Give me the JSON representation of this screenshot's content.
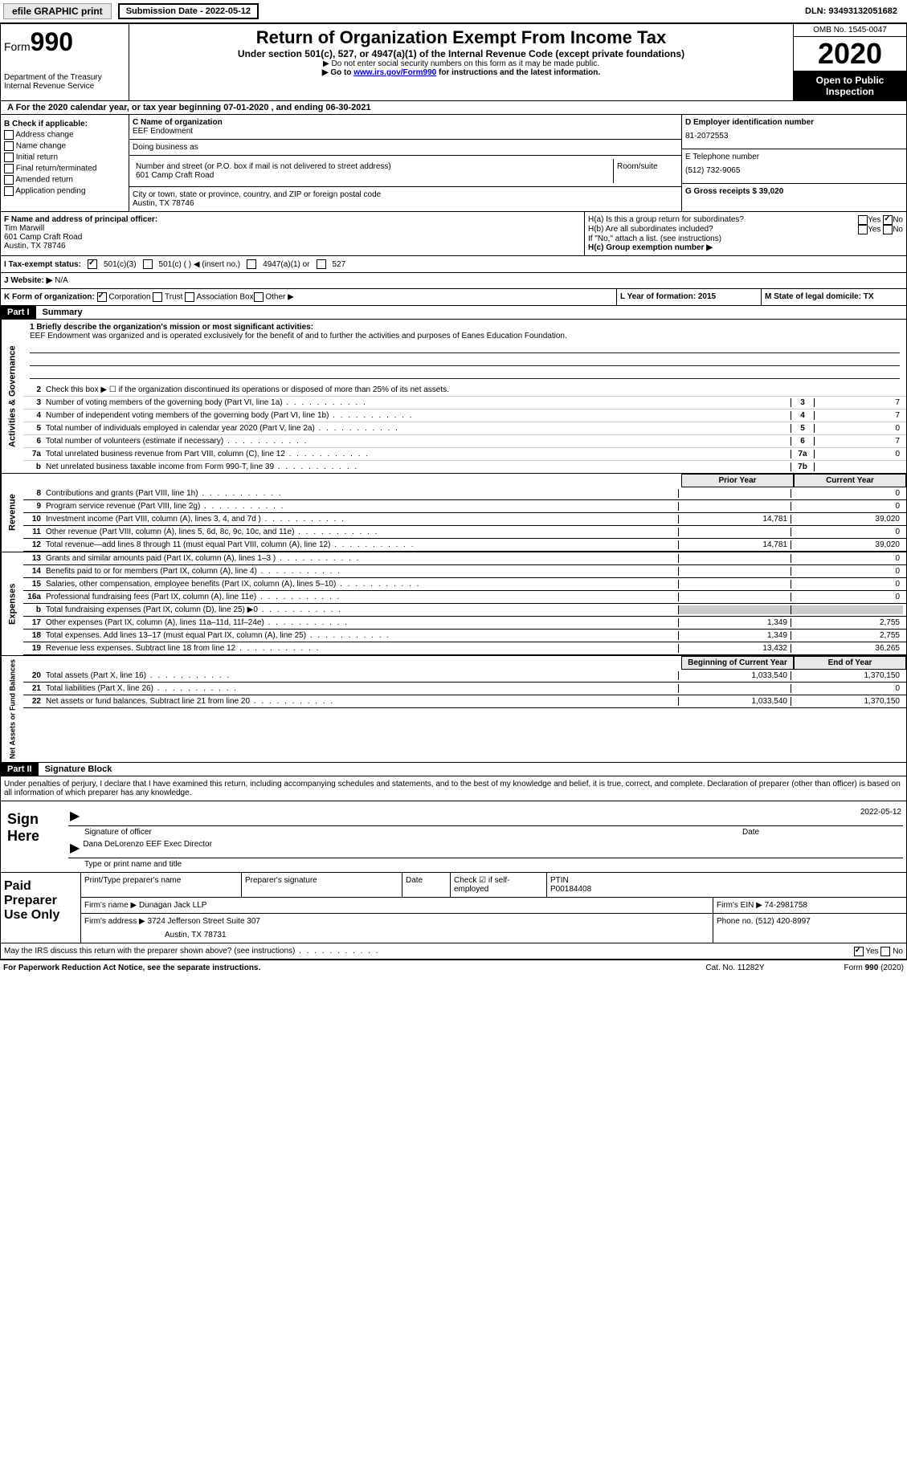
{
  "top": {
    "efile": "efile GRAPHIC print",
    "sub_date_label": "Submission Date - 2022-05-12",
    "dln": "DLN: 93493132051682"
  },
  "header": {
    "form_label": "Form",
    "form_num": "990",
    "dept": "Department of the Treasury\nInternal Revenue Service",
    "title": "Return of Organization Exempt From Income Tax",
    "subtitle": "Under section 501(c), 527, or 4947(a)(1) of the Internal Revenue Code (except private foundations)",
    "note1": "▶ Do not enter social security numbers on this form as it may be made public.",
    "note2_pre": "▶ Go to ",
    "note2_link": "www.irs.gov/Form990",
    "note2_post": " for instructions and the latest information.",
    "omb": "OMB No. 1545-0047",
    "year": "2020",
    "inspect": "Open to Public Inspection"
  },
  "row_a": "A For the 2020 calendar year, or tax year beginning 07-01-2020   , and ending 06-30-2021",
  "col_b": {
    "label": "B Check if applicable:",
    "items": [
      "Address change",
      "Name change",
      "Initial return",
      "Final return/terminated",
      "Amended return",
      "Application pending"
    ]
  },
  "org": {
    "c_label": "C Name of organization",
    "name": "EEF Endowment",
    "dba_label": "Doing business as",
    "dba": "",
    "street_label": "Number and street (or P.O. box if mail is not delivered to street address)",
    "street": "601 Camp Craft Road",
    "room_label": "Room/suite",
    "city_label": "City or town, state or province, country, and ZIP or foreign postal code",
    "city": "Austin, TX  78746"
  },
  "right": {
    "d_label": "D Employer identification number",
    "ein": "81-2072553",
    "e_label": "E Telephone number",
    "phone": "(512) 732-9065",
    "g_label": "G Gross receipts $ 39,020"
  },
  "fh": {
    "f_label": "F  Name and address of principal officer:",
    "f_name": "Tim Marwill",
    "f_addr1": "601 Camp Craft Road",
    "f_addr2": "Austin, TX  78746",
    "ha": "H(a)  Is this a group return for subordinates?",
    "hb": "H(b)  Are all subordinates included?",
    "hb_note": "If \"No,\" attach a list. (see instructions)",
    "hc": "H(c)  Group exemption number ▶",
    "yes": "Yes",
    "no": "No"
  },
  "status": {
    "i_label": "I  Tax-exempt status:",
    "s1": "501(c)(3)",
    "s2": "501(c) (  ) ◀ (insert no.)",
    "s3": "4947(a)(1) or",
    "s4": "527"
  },
  "j": {
    "label": "J  Website: ▶",
    "val": "N/A"
  },
  "klm": {
    "k_label": "K Form of organization:",
    "k_opts": [
      "Corporation",
      "Trust",
      "Association",
      "Other ▶"
    ],
    "l": "L Year of formation: 2015",
    "m": "M State of legal domicile: TX"
  },
  "part1": {
    "header": "Part I",
    "title": "Summary",
    "line1_label": "1 Briefly describe the organization's mission or most significant activities:",
    "mission": "EEF Endowment was organized and is operated exclusively for the benefit of and to further the activities and purposes of Eanes Education Foundation.",
    "line2": "Check this box ▶ ☐  if the organization discontinued its operations or disposed of more than 25% of its net assets.",
    "gov_label": "Activities & Governance",
    "rev_label": "Revenue",
    "exp_label": "Expenses",
    "net_label": "Net Assets or Fund Balances",
    "prior": "Prior Year",
    "current": "Current Year",
    "boy": "Beginning of Current Year",
    "eoy": "End of Year",
    "lines_gov": [
      {
        "n": "3",
        "label": "Number of voting members of the governing body (Part VI, line 1a)",
        "box": "3",
        "val": "7"
      },
      {
        "n": "4",
        "label": "Number of independent voting members of the governing body (Part VI, line 1b)",
        "box": "4",
        "val": "7"
      },
      {
        "n": "5",
        "label": "Total number of individuals employed in calendar year 2020 (Part V, line 2a)",
        "box": "5",
        "val": "0"
      },
      {
        "n": "6",
        "label": "Total number of volunteers (estimate if necessary)",
        "box": "6",
        "val": "7"
      },
      {
        "n": "7a",
        "label": "Total unrelated business revenue from Part VIII, column (C), line 12",
        "box": "7a",
        "val": "0"
      },
      {
        "n": "b",
        "label": "Net unrelated business taxable income from Form 990-T, line 39",
        "box": "7b",
        "val": ""
      }
    ],
    "lines_rev": [
      {
        "n": "8",
        "label": "Contributions and grants (Part VIII, line 1h)",
        "p": "",
        "c": "0"
      },
      {
        "n": "9",
        "label": "Program service revenue (Part VIII, line 2g)",
        "p": "",
        "c": "0"
      },
      {
        "n": "10",
        "label": "Investment income (Part VIII, column (A), lines 3, 4, and 7d )",
        "p": "14,781",
        "c": "39,020"
      },
      {
        "n": "11",
        "label": "Other revenue (Part VIII, column (A), lines 5, 6d, 8c, 9c, 10c, and 11e)",
        "p": "",
        "c": "0"
      },
      {
        "n": "12",
        "label": "Total revenue—add lines 8 through 11 (must equal Part VIII, column (A), line 12)",
        "p": "14,781",
        "c": "39,020"
      }
    ],
    "lines_exp": [
      {
        "n": "13",
        "label": "Grants and similar amounts paid (Part IX, column (A), lines 1–3 )",
        "p": "",
        "c": "0"
      },
      {
        "n": "14",
        "label": "Benefits paid to or for members (Part IX, column (A), line 4)",
        "p": "",
        "c": "0"
      },
      {
        "n": "15",
        "label": "Salaries, other compensation, employee benefits (Part IX, column (A), lines 5–10)",
        "p": "",
        "c": "0"
      },
      {
        "n": "16a",
        "label": "Professional fundraising fees (Part IX, column (A), line 11e)",
        "p": "",
        "c": "0"
      },
      {
        "n": "b",
        "label": "Total fundraising expenses (Part IX, column (D), line 25) ▶0",
        "p": "shaded",
        "c": "shaded"
      },
      {
        "n": "17",
        "label": "Other expenses (Part IX, column (A), lines 11a–11d, 11f–24e)",
        "p": "1,349",
        "c": "2,755"
      },
      {
        "n": "18",
        "label": "Total expenses. Add lines 13–17 (must equal Part IX, column (A), line 25)",
        "p": "1,349",
        "c": "2,755"
      },
      {
        "n": "19",
        "label": "Revenue less expenses. Subtract line 18 from line 12",
        "p": "13,432",
        "c": "36,265"
      }
    ],
    "lines_net": [
      {
        "n": "20",
        "label": "Total assets (Part X, line 16)",
        "p": "1,033,540",
        "c": "1,370,150"
      },
      {
        "n": "21",
        "label": "Total liabilities (Part X, line 26)",
        "p": "",
        "c": "0"
      },
      {
        "n": "22",
        "label": "Net assets or fund balances. Subtract line 21 from line 20",
        "p": "1,033,540",
        "c": "1,370,150"
      }
    ]
  },
  "part2": {
    "header": "Part II",
    "title": "Signature Block",
    "decl": "Under penalties of perjury, I declare that I have examined this return, including accompanying schedules and statements, and to the best of my knowledge and belief, it is true, correct, and complete. Declaration of preparer (other than officer) is based on all information of which preparer has any knowledge.",
    "sign_here": "Sign Here",
    "sig_officer": "Signature of officer",
    "sig_date": "2022-05-12",
    "date_label": "Date",
    "officer_name": "Dana DeLorenzo  EEF Exec Director",
    "type_label": "Type or print name and title",
    "paid_label": "Paid Preparer Use Only",
    "pt_name_label": "Print/Type preparer's name",
    "pt_sig_label": "Preparer's signature",
    "pt_date_label": "Date",
    "pt_check": "Check ☑ if self-employed",
    "ptin_label": "PTIN",
    "ptin": "P00184408",
    "firm_name_label": "Firm's name    ▶",
    "firm_name": "Dunagan Jack LLP",
    "firm_ein_label": "Firm's EIN ▶",
    "firm_ein": "74-2981758",
    "firm_addr_label": "Firm's address ▶",
    "firm_addr": "3724 Jefferson Street Suite 307",
    "firm_city": "Austin, TX  78731",
    "firm_phone_label": "Phone no.",
    "firm_phone": "(512) 420-8997",
    "discuss": "May the IRS discuss this return with the preparer shown above? (see instructions)"
  },
  "footer": {
    "left": "For Paperwork Reduction Act Notice, see the separate instructions.",
    "mid": "Cat. No. 11282Y",
    "right": "Form 990 (2020)"
  }
}
